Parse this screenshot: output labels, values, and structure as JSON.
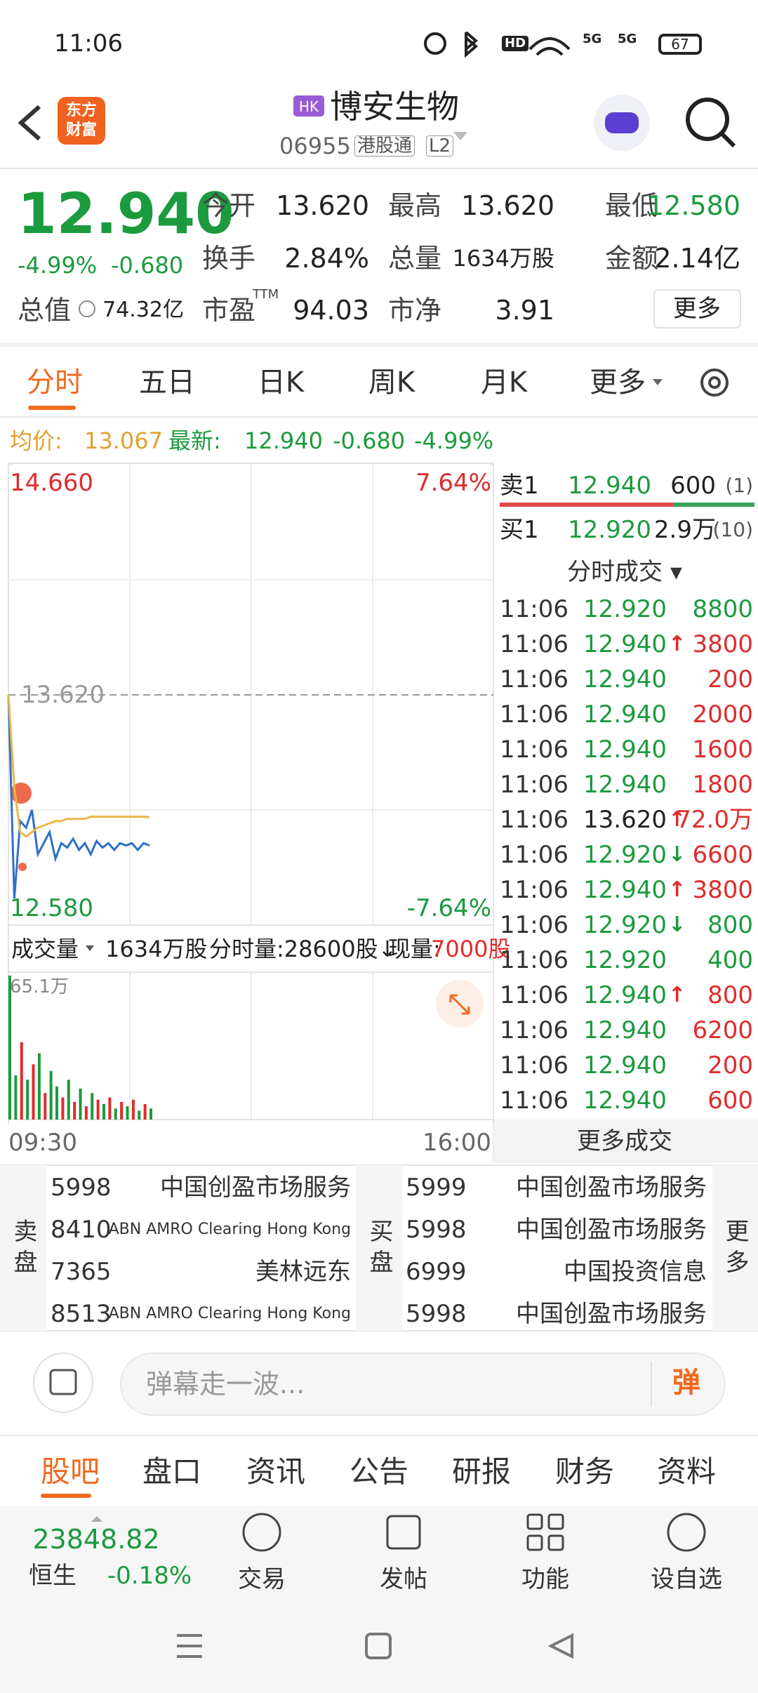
{
  "status_bar": {
    "time": "11:06",
    "hd": "HD",
    "net1": "5G",
    "net2": "5G",
    "battery": "67"
  },
  "header": {
    "logo": [
      "东方",
      "财富"
    ],
    "market": "HK",
    "title": "博安生物",
    "code": "06955",
    "tag": "港股通",
    "level": "L2"
  },
  "quote": {
    "price": "12.940",
    "change_pct": "-4.99%",
    "change": "-0.680",
    "fields": [
      {
        "label": "今开",
        "value": "13.620",
        "color": "#222222"
      },
      {
        "label": "最高",
        "value": "13.620",
        "color": "#222222"
      },
      {
        "label": "最低",
        "value": "12.580",
        "color": "#1b9a3e"
      },
      {
        "label": "换手",
        "value": "2.84%",
        "color": "#222222"
      },
      {
        "label": "总量",
        "value": "1634万股",
        "color": "#222222"
      },
      {
        "label": "金额",
        "value": "2.14亿",
        "color": "#222222"
      },
      {
        "label": "总值",
        "value": "74.32亿",
        "color": "#222222"
      },
      {
        "label": "市盈",
        "value": "94.03",
        "color": "#222222"
      },
      {
        "label": "市净",
        "value": "3.91",
        "color": "#222222"
      }
    ],
    "ttm": "TTM",
    "more": "更多"
  },
  "tabs": [
    "分时",
    "五日",
    "日K",
    "周K",
    "月K",
    "更多"
  ],
  "info_line": {
    "avg_label": "均价:",
    "avg": "13.067",
    "last_label": "最新:",
    "last": "12.940",
    "change": "-0.680",
    "change_pct": "-4.99%"
  },
  "chart_data": [
    {
      "type": "line",
      "x": [
        0,
        4,
        8,
        12,
        16,
        20,
        24,
        28,
        32,
        36,
        40,
        44,
        48,
        52,
        56,
        60,
        64,
        68,
        72,
        76,
        80,
        84,
        88,
        92,
        96
      ],
      "series": [
        {
          "color": "#2f6fc6",
          "values": [
            13.62,
            12.7,
            13.05,
            13.02,
            13.1,
            12.9,
            12.95,
            13.0,
            12.88,
            12.95,
            12.93,
            12.97,
            12.92,
            12.95,
            12.9,
            12.96,
            12.93,
            12.95,
            12.92,
            12.95,
            12.94,
            12.95,
            12.92,
            12.95,
            12.94
          ]
        },
        {
          "color": "#e8b84a",
          "values": [
            13.62,
            13.2,
            13.0,
            12.98,
            13.0,
            13.02,
            13.03,
            13.04,
            13.05,
            13.05,
            13.06,
            13.06,
            13.06,
            13.06,
            13.07,
            13.07,
            13.07,
            13.07,
            13.07,
            13.07,
            13.07,
            13.07,
            13.07,
            13.07,
            13.067
          ]
        }
      ],
      "xlim": [
        0,
        330
      ],
      "xticks": [
        {
          "value": 0,
          "label": "09:30"
        },
        {
          "value": 330,
          "label": "16:00"
        }
      ],
      "ylim": [
        12.58,
        14.66
      ],
      "yticks": [
        {
          "value": 12.58,
          "label": "12.580"
        },
        {
          "value": 14.66,
          "label": "14.660"
        }
      ],
      "y2lim": [
        -7.64,
        7.64
      ],
      "y2ticks": [
        {
          "value": -7.64,
          "label": "-7.64%"
        },
        {
          "value": 7.64,
          "label": "7.64%"
        }
      ],
      "ref_line": {
        "value": 13.62,
        "label": "13.620"
      }
    },
    {
      "type": "bar",
      "x": [
        0,
        4,
        8,
        12,
        16,
        20,
        24,
        28,
        32,
        36,
        40,
        44,
        48,
        52,
        56,
        60,
        64,
        68,
        72,
        76,
        80,
        84,
        88,
        92,
        96
      ],
      "values": [
        65.1,
        20,
        35,
        18,
        25,
        30,
        12,
        22,
        15,
        10,
        18,
        8,
        14,
        6,
        12,
        9,
        7,
        10,
        5,
        8,
        6,
        9,
        4,
        7,
        5
      ],
      "colors": [
        "#1b9a3e",
        "#1b9a3e",
        "#e02b2b",
        "#1b9a3e",
        "#e02b2b",
        "#1b9a3e",
        "#e02b2b",
        "#1b9a3e",
        "#1b9a3e",
        "#e02b2b",
        "#1b9a3e",
        "#e02b2b",
        "#1b9a3e",
        "#e02b2b",
        "#1b9a3e",
        "#e02b2b",
        "#1b9a3e",
        "#e02b2b",
        "#1b9a3e",
        "#e02b2b",
        "#1b9a3e",
        "#e02b2b",
        "#1b9a3e",
        "#e02b2b",
        "#1b9a3e"
      ],
      "xlim": [
        0,
        330
      ],
      "ylim": [
        0,
        65.1
      ],
      "yticks": [
        {
          "value": 65.1,
          "label": "65.1万"
        }
      ]
    }
  ],
  "volume_header": {
    "label": "成交量",
    "total": "1634万股",
    "minute": "分时量:28600股↓",
    "now_label": "现量:",
    "now": "7000股"
  },
  "order_book": {
    "ask": {
      "label": "卖1",
      "price": "12.940",
      "volume": "600",
      "count": "(1)"
    },
    "bid": {
      "label": "买1",
      "price": "12.920",
      "volume": "2.9万",
      "count": "(10)"
    }
  },
  "ticks": {
    "title": "分时成交 ▾",
    "more": "更多成交",
    "rows": [
      {
        "time": "11:06",
        "price": "12.920",
        "volume": "8800",
        "price_color": "#1b9a3e",
        "color": "#1b9a3e"
      },
      {
        "time": "11:06",
        "price": "12.940",
        "arrow": "↑",
        "arrow_color": "#e02b2b",
        "volume": "3800",
        "price_color": "#1b9a3e",
        "color": "#e02b2b"
      },
      {
        "time": "11:06",
        "price": "12.940",
        "volume": "200",
        "price_color": "#1b9a3e",
        "color": "#e02b2b"
      },
      {
        "time": "11:06",
        "price": "12.940",
        "volume": "2000",
        "price_color": "#1b9a3e",
        "color": "#e02b2b"
      },
      {
        "time": "11:06",
        "price": "12.940",
        "volume": "1600",
        "price_color": "#1b9a3e",
        "color": "#e02b2b"
      },
      {
        "time": "11:06",
        "price": "12.940",
        "volume": "1800",
        "price_color": "#1b9a3e",
        "color": "#e02b2b"
      },
      {
        "time": "11:06",
        "price": "13.620",
        "arrow": "↑",
        "arrow_color": "#e02b2b",
        "volume": "72.0万",
        "price_color": "#222222",
        "color": "#e02b2b"
      },
      {
        "time": "11:06",
        "price": "12.920",
        "arrow": "↓",
        "arrow_color": "#1b9a3e",
        "volume": "6600",
        "price_color": "#1b9a3e",
        "color": "#e02b2b"
      },
      {
        "time": "11:06",
        "price": "12.940",
        "arrow": "↑",
        "arrow_color": "#e02b2b",
        "volume": "3800",
        "price_color": "#1b9a3e",
        "color": "#e02b2b"
      },
      {
        "time": "11:06",
        "price": "12.920",
        "arrow": "↓",
        "arrow_color": "#1b9a3e",
        "volume": "800",
        "price_color": "#1b9a3e",
        "color": "#1b9a3e"
      },
      {
        "time": "11:06",
        "price": "12.920",
        "volume": "400",
        "price_color": "#1b9a3e",
        "color": "#1b9a3e"
      },
      {
        "time": "11:06",
        "price": "12.940",
        "arrow": "↑",
        "arrow_color": "#e02b2b",
        "volume": "800",
        "price_color": "#1b9a3e",
        "color": "#e02b2b"
      },
      {
        "time": "11:06",
        "price": "12.940",
        "volume": "6200",
        "price_color": "#1b9a3e",
        "color": "#e02b2b"
      },
      {
        "time": "11:06",
        "price": "12.940",
        "volume": "200",
        "price_color": "#1b9a3e",
        "color": "#e02b2b"
      },
      {
        "time": "11:06",
        "price": "12.940",
        "volume": "600",
        "price_color": "#1b9a3e",
        "color": "#e02b2b"
      }
    ]
  },
  "brokers": {
    "sell_label": "卖盘",
    "buy_label": "买盘",
    "more": "更多",
    "sell": [
      {
        "code": "5998",
        "name": "中国创盈市场服务"
      },
      {
        "code": "8410",
        "name": "ABN AMRO Clearing Hong Kong"
      },
      {
        "code": "7365",
        "name": "美林远东"
      },
      {
        "code": "8513",
        "name": "ABN AMRO Clearing Hong Kong"
      }
    ],
    "buy": [
      {
        "code": "5999",
        "name": "中国创盈市场服务"
      },
      {
        "code": "5998",
        "name": "中国创盈市场服务"
      },
      {
        "code": "6999",
        "name": "中国投资信息"
      },
      {
        "code": "5998",
        "name": "中国创盈市场服务"
      }
    ]
  },
  "comment": {
    "placeholder": "弹幕走一波...",
    "button": "弹"
  },
  "bottom_tabs": [
    "股吧",
    "盘口",
    "资讯",
    "公告",
    "研报",
    "财务",
    "资料"
  ],
  "index": {
    "value": "23848.82",
    "name": "恒生",
    "change": "-0.18%"
  },
  "toolbar": [
    "交易",
    "发帖",
    "功能",
    "设自选"
  ]
}
